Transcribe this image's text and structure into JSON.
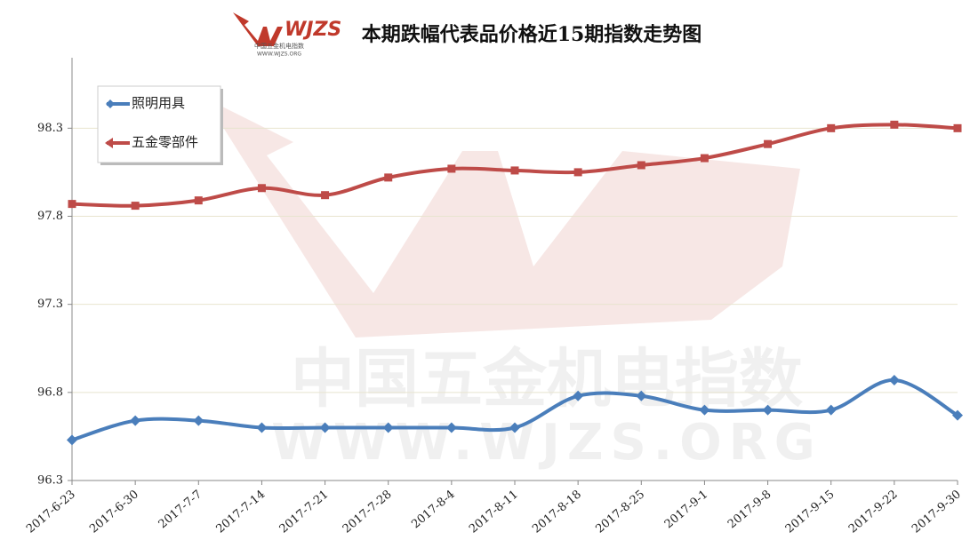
{
  "chart_data": {
    "type": "line",
    "title": "本期跌幅代表品价格近15期指数走势图",
    "logo": "WJZS",
    "watermark": [
      "中国五金机电指数",
      "WWW.WJZS.ORG"
    ],
    "categories": [
      "2017-6-23",
      "2017-6-30",
      "2017-7-7",
      "2017-7-14",
      "2017-7-21",
      "2017-7-28",
      "2017-8-4",
      "2017-8-11",
      "2017-8-18",
      "2017-8-25",
      "2017-9-1",
      "2017-9-8",
      "2017-9-15",
      "2017-9-22",
      "2017-9-30"
    ],
    "series": [
      {
        "name": "照明用具",
        "color": "#4a7ebb",
        "marker": "diamond",
        "values": [
          96.53,
          96.64,
          96.64,
          96.6,
          96.6,
          96.6,
          96.6,
          96.6,
          96.78,
          96.78,
          96.7,
          96.7,
          96.7,
          96.87,
          96.67
        ]
      },
      {
        "name": "五金零部件",
        "color": "#be4b48",
        "marker": "square",
        "values": [
          97.87,
          97.86,
          97.89,
          97.96,
          97.92,
          98.02,
          98.07,
          98.06,
          98.05,
          98.09,
          98.13,
          98.21,
          98.3,
          98.32,
          98.3
        ]
      }
    ],
    "ylim": [
      96.3,
      98.7
    ],
    "yticks": [
      96.3,
      96.8,
      97.3,
      97.8,
      98.3
    ],
    "grid": true,
    "legend": "top-left"
  }
}
